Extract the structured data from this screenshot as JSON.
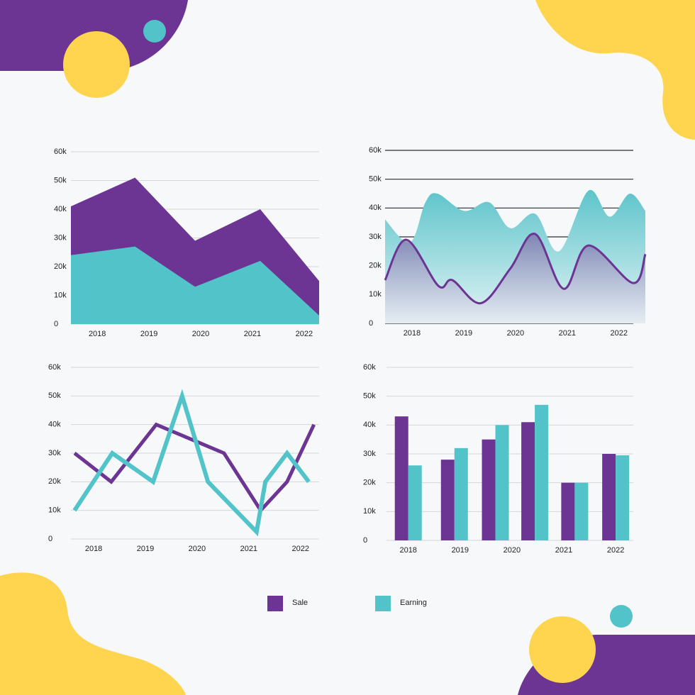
{
  "chart_data": [
    {
      "type": "area",
      "smooth": false,
      "grid": true,
      "grid_color": "#d4d6da",
      "x": [
        2017.49,
        2018.73,
        2019.89,
        2021.15,
        2022.29
      ],
      "xlim": [
        2017.49,
        2022.29
      ],
      "xticks": [
        2018,
        2019,
        2020,
        2021,
        2022
      ],
      "ylim": [
        0,
        60000
      ],
      "yticks": [
        0,
        {
          "value": 10000,
          "label": "10k"
        },
        {
          "value": 20000,
          "label": "20k"
        },
        {
          "value": 30000,
          "label": "30k"
        },
        {
          "value": 40000,
          "label": "40k"
        },
        {
          "value": 50000,
          "label": "50k"
        },
        {
          "value": 60000,
          "label": "60k"
        }
      ],
      "series": [
        {
          "color": "#6c3593",
          "values": [
            41000,
            51000,
            29000,
            40000,
            15000
          ]
        },
        {
          "color": "#52c4c9",
          "values": [
            24000,
            27000,
            13000,
            22000,
            3000
          ]
        }
      ]
    },
    {
      "type": "wave",
      "smooth": true,
      "grid": true,
      "grid_color": "#2b2b33",
      "xlim": [
        2017.48,
        2022.51
      ],
      "xticks": [
        2018,
        2019,
        2020,
        2021,
        2022
      ],
      "ylim": [
        0,
        60000
      ],
      "yticks": [
        0,
        {
          "value": 10000,
          "label": "10k"
        },
        {
          "value": 20000,
          "label": "20k"
        },
        {
          "value": 30000,
          "label": "30k"
        },
        {
          "value": 40000,
          "label": "40k"
        },
        {
          "value": 50000,
          "label": "50k"
        },
        {
          "value": 60000,
          "label": "60k"
        }
      ],
      "series": [
        {
          "color": "#52c4c9",
          "x": [
            2017.48,
            2017.96,
            2018.26,
            2018.49,
            2019.01,
            2019.49,
            2019.9,
            2020.38,
            2020.84,
            2021.41,
            2021.82,
            2022.21,
            2022.51
          ],
          "values": [
            36000,
            28000,
            42000,
            45000,
            39000,
            42000,
            33000,
            38000,
            25000,
            46000,
            37000,
            45000,
            39000
          ]
        },
        {
          "color": "#6c3593",
          "x": [
            2017.48,
            2017.89,
            2018.51,
            2018.78,
            2019.33,
            2019.9,
            2020.38,
            2020.93,
            2021.41,
            2022.27,
            2022.51
          ],
          "values": [
            15000,
            29000,
            13000,
            15000,
            7000,
            19000,
            31000,
            12000,
            27000,
            14000,
            24000
          ]
        }
      ]
    },
    {
      "type": "line",
      "smooth": false,
      "grid": true,
      "grid_color": "#d4d6da",
      "xlim": [
        2017.56,
        2022.36
      ],
      "xticks": [
        2018,
        2019,
        2020,
        2021,
        2022
      ],
      "ylim": [
        0,
        60000
      ],
      "yticks": [
        0,
        {
          "value": 10000,
          "label": "10k"
        },
        {
          "value": 20000,
          "label": "20k"
        },
        {
          "value": 30000,
          "label": "30k"
        },
        {
          "value": 40000,
          "label": "40k"
        },
        {
          "value": 50000,
          "label": "50k"
        },
        {
          "value": 60000,
          "label": "60k"
        }
      ],
      "series": [
        {
          "color": "#6c3593",
          "x": [
            2017.63,
            2018.34,
            2019.21,
            2020.52,
            2021.23,
            2021.74,
            2022.26
          ],
          "values": [
            30000,
            20000,
            40000,
            30000,
            10000,
            20000,
            40000
          ]
        },
        {
          "color": "#52c4c9",
          "x": [
            2017.63,
            2018.36,
            2019.15,
            2019.71,
            2020.21,
            2021.15,
            2021.32,
            2021.74,
            2022.16
          ],
          "values": [
            10000,
            30000,
            20000,
            50000,
            20000,
            2500,
            20000,
            30000,
            20000
          ]
        }
      ]
    },
    {
      "type": "bar",
      "grid": true,
      "grid_color": "#d4d6da",
      "x": [
        2018,
        2018.89,
        2019.68,
        2020.44,
        2021.21,
        2022
      ],
      "xlim": [
        2017.58,
        2022.34
      ],
      "xticks": [
        2018,
        2019,
        2020,
        2021,
        2022
      ],
      "ylim": [
        0,
        60000
      ],
      "yticks": [
        0,
        {
          "value": 10000,
          "label": "10k"
        },
        {
          "value": 20000,
          "label": "20k"
        },
        {
          "value": 30000,
          "label": "30k"
        },
        {
          "value": 40000,
          "label": "40k"
        },
        {
          "value": 50000,
          "label": "50k"
        },
        {
          "value": 60000,
          "label": "60k"
        }
      ],
      "series": [
        {
          "color": "#6c3593",
          "values": [
            43000,
            28000,
            35000,
            41000,
            20000,
            30000
          ]
        },
        {
          "color": "#52c4c9",
          "values": [
            26000,
            32000,
            40000,
            47000,
            20000,
            29500
          ]
        }
      ]
    }
  ],
  "legend": [
    {
      "name": "Sale",
      "color": "#6c3593"
    },
    {
      "name": "Earning",
      "color": "#52c4c9"
    }
  ]
}
